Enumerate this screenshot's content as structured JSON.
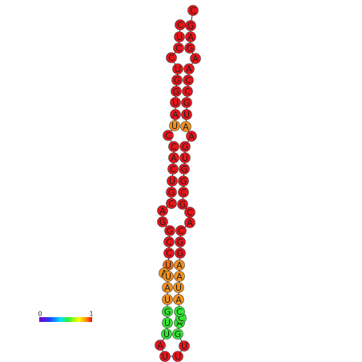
{
  "nodes": [
    {
      "label": "C",
      "color": "#e8141b"
    },
    {
      "label": "U",
      "color": "#e8141b"
    },
    {
      "label": "C",
      "color": "#e8141b"
    },
    {
      "label": "C",
      "color": "#e8141b"
    },
    {
      "label": "U",
      "color": "#e8141b"
    },
    {
      "label": "G",
      "color": "#e8141b"
    },
    {
      "label": "G",
      "color": "#e8141b"
    },
    {
      "label": "U",
      "color": "#e8141b"
    },
    {
      "label": "A",
      "color": "#e8141b"
    },
    {
      "label": "U",
      "color": "#f3901c"
    },
    {
      "label": "C",
      "color": "#e8141b"
    },
    {
      "label": "C",
      "color": "#e8141b"
    },
    {
      "label": "A",
      "color": "#e8141b"
    },
    {
      "label": "C",
      "color": "#e8141b"
    },
    {
      "label": "U",
      "color": "#e8141b"
    },
    {
      "label": "G",
      "color": "#e8141b"
    },
    {
      "label": "C",
      "color": "#e8141b"
    },
    {
      "label": "A",
      "color": "#e8141b"
    },
    {
      "label": "G",
      "color": "#e8141b"
    },
    {
      "label": "G",
      "color": "#e8141b"
    },
    {
      "label": "C",
      "color": "#e8141b"
    },
    {
      "label": "C",
      "color": "#e8141b"
    },
    {
      "label": "U",
      "color": "#ef6a1c"
    },
    {
      "label": "A",
      "color": "#f3901c"
    },
    {
      "label": "U",
      "color": "#f3901c"
    },
    {
      "label": "A",
      "color": "#f3901c"
    },
    {
      "label": "U",
      "color": "#f3901c"
    },
    {
      "label": "G",
      "color": "#33e633"
    },
    {
      "label": "U",
      "color": "#33e633"
    },
    {
      "label": "U",
      "color": "#33e633"
    },
    {
      "label": "A",
      "color": "#e8141b"
    },
    {
      "label": "U",
      "color": "#e8141b"
    },
    {
      "label": "U",
      "color": "#e8141b"
    },
    {
      "label": "U",
      "color": "#e8141b"
    },
    {
      "label": "G",
      "color": "#33e633"
    },
    {
      "label": "A",
      "color": "#33e633"
    },
    {
      "label": "C",
      "color": "#33e633"
    },
    {
      "label": "C",
      "color": "#33e633"
    },
    {
      "label": "A",
      "color": "#f3901c"
    },
    {
      "label": "U",
      "color": "#f3901c"
    },
    {
      "label": "A",
      "color": "#f3901c"
    },
    {
      "label": "A",
      "color": "#f3901c"
    },
    {
      "label": "G",
      "color": "#e8141b"
    },
    {
      "label": "G",
      "color": "#e8141b"
    },
    {
      "label": "C",
      "color": "#e8141b"
    },
    {
      "label": "A",
      "color": "#e8141b"
    },
    {
      "label": "C",
      "color": "#e8141b"
    },
    {
      "label": "G",
      "color": "#e8141b"
    },
    {
      "label": "C",
      "color": "#e8141b"
    },
    {
      "label": "G",
      "color": "#e8141b"
    },
    {
      "label": "G",
      "color": "#e8141b"
    },
    {
      "label": "U",
      "color": "#e8141b"
    },
    {
      "label": "G",
      "color": "#e8141b"
    },
    {
      "label": "A",
      "color": "#e8141b"
    },
    {
      "label": "A",
      "color": "#f3901c"
    },
    {
      "label": "U",
      "color": "#e8141b"
    },
    {
      "label": "G",
      "color": "#e8141b"
    },
    {
      "label": "C",
      "color": "#e8141b"
    },
    {
      "label": "C",
      "color": "#e8141b"
    },
    {
      "label": "A",
      "color": "#e8141b"
    },
    {
      "label": "A",
      "color": "#e8141b"
    },
    {
      "label": "G",
      "color": "#e8141b"
    },
    {
      "label": "A",
      "color": "#e8141b"
    },
    {
      "label": "G",
      "color": "#e8141b"
    },
    {
      "label": "C",
      "color": "#e8141b"
    }
  ],
  "colorbar": {
    "min_label": "0",
    "max_label": "1"
  }
}
